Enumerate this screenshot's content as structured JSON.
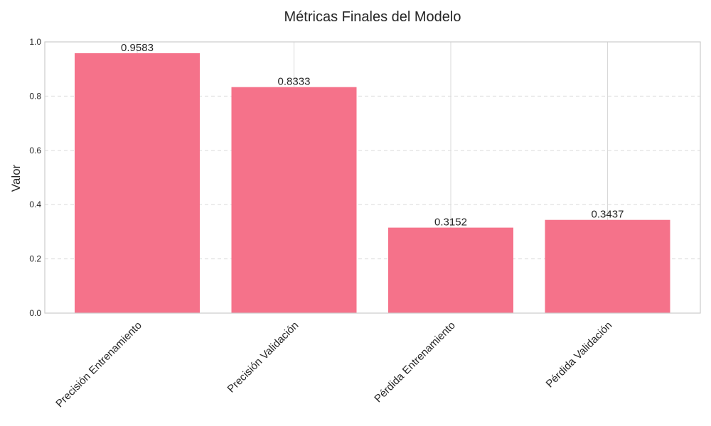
{
  "chart_data": {
    "type": "bar",
    "title": "Métricas Finales del Modelo",
    "xlabel": "",
    "ylabel": "Valor",
    "categories": [
      "Precisión Entrenamiento",
      "Precisión Validación",
      "Pérdida Entrenamiento",
      "Pérdida Validación"
    ],
    "values": [
      0.9583,
      0.8333,
      0.3152,
      0.3437
    ],
    "value_labels": [
      "0.9583",
      "0.8333",
      "0.3152",
      "0.3437"
    ],
    "ylim": [
      0,
      1.0
    ],
    "yticks": [
      "0.0",
      "0.2",
      "0.4",
      "0.6",
      "0.8",
      "1.0"
    ],
    "bar_color": "#f5728a",
    "grid": true,
    "legend": "none"
  }
}
